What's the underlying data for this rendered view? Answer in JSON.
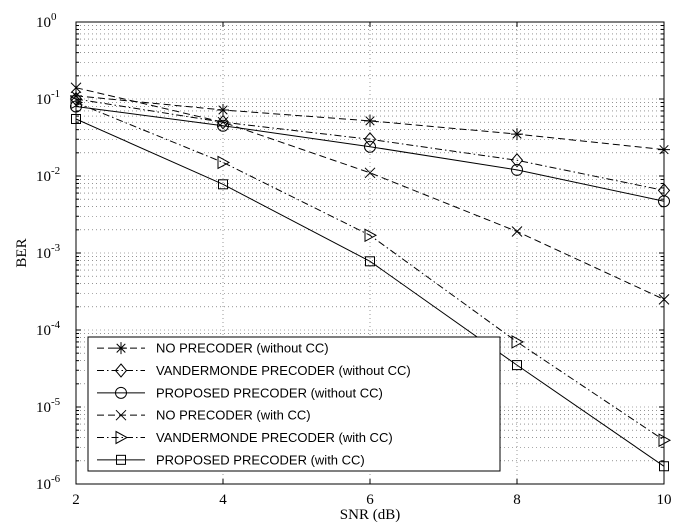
{
  "chart_data": {
    "type": "line",
    "title": "",
    "xlabel": "SNR (dB)",
    "ylabel": "BER",
    "xlim": [
      2,
      10
    ],
    "ylim": [
      1e-06,
      1
    ],
    "yscale": "log",
    "grid": true,
    "legend_position": "bottom-left",
    "x_ticks": [
      "2",
      "4",
      "6",
      "8",
      "10"
    ],
    "y_ticks": [
      {
        "base": "10",
        "exp": "-6"
      },
      {
        "base": "10",
        "exp": "-5"
      },
      {
        "base": "10",
        "exp": "-4"
      },
      {
        "base": "10",
        "exp": "-3"
      },
      {
        "base": "10",
        "exp": "-2"
      },
      {
        "base": "10",
        "exp": "-1"
      },
      {
        "base": "10",
        "exp": "0"
      }
    ],
    "x": [
      2,
      4,
      6,
      8,
      10
    ],
    "series": [
      {
        "name": "NO PRECODER (without CC)",
        "marker": "star",
        "dash": "dashed",
        "values": [
          0.11,
          0.072,
          0.052,
          0.035,
          0.022
        ]
      },
      {
        "name": "VANDERMONDE PRECODER (without CC)",
        "marker": "diamond",
        "dash": "dashdot",
        "values": [
          0.1,
          0.05,
          0.03,
          0.016,
          0.0065
        ]
      },
      {
        "name": "PROPOSED PRECODER (without CC)",
        "marker": "circle",
        "dash": "solid",
        "values": [
          0.08,
          0.045,
          0.024,
          0.012,
          0.0047
        ]
      },
      {
        "name": "NO PRECODER (with CC)",
        "marker": "x",
        "dash": "dashed",
        "values": [
          0.14,
          0.05,
          0.011,
          0.0019,
          0.00025
        ]
      },
      {
        "name": "VANDERMONDE PRECODER (with CC)",
        "marker": "triangle-right",
        "dash": "dashdot",
        "values": [
          0.09,
          0.015,
          0.0017,
          7e-05,
          3.7e-06
        ]
      },
      {
        "name": "PROPOSED PRECODER (with CC)",
        "marker": "square",
        "dash": "solid",
        "values": [
          0.055,
          0.0078,
          0.00078,
          3.5e-05,
          1.7e-06
        ]
      }
    ]
  }
}
